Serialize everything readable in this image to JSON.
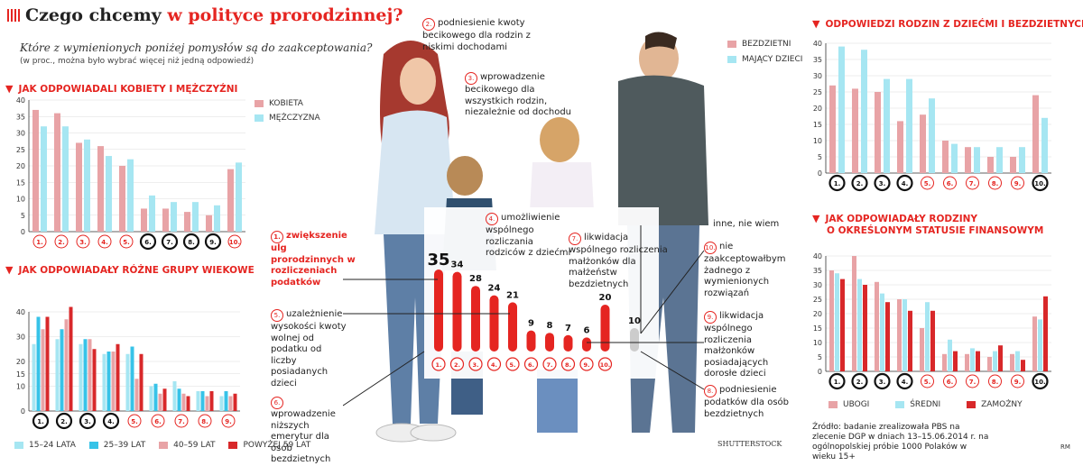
{
  "header": {
    "title_a": "Czego chcemy",
    "title_b": "w polityce prorodzinnej?",
    "subtitle": "Które z wymienionych poniżej pomysłów są do zaakceptowania?",
    "note": "(w proc., można było wybrać więcej niż jedną odpowiedź)"
  },
  "sections": {
    "gender": "JAK ODPOWIADALI KOBIETY I MĘŻCZYŹNI",
    "age": "JAK ODPOWIADAŁY RÓŻNE GRUPY WIEKOWE",
    "families": "ODPOWIEDZI RODZIN Z DZIEĆMI I BEZDZIETNYCH",
    "status_1": "JAK ODPOWIADAŁY RODZINY",
    "status_2": "O OKREŚLONYM STATUSIE FINANSOWYM"
  },
  "colors": {
    "red": "#e52521",
    "pink": "#e8a3a6",
    "cyan": "#a6e6f2",
    "blue": "#37c3e8",
    "dark_red": "#d8282a",
    "grey": "#cccccc"
  },
  "chart_data": [
    {
      "id": "gender",
      "type": "bar",
      "categories": [
        "1.",
        "2.",
        "3.",
        "4.",
        "5.",
        "6.",
        "7.",
        "8.",
        "9.",
        "10."
      ],
      "ylim": [
        0,
        40
      ],
      "yticks": [
        0,
        5,
        10,
        15,
        20,
        25,
        30,
        35,
        40
      ],
      "series": [
        {
          "name": "KOBIETA",
          "values": [
            37,
            36,
            27,
            26,
            20,
            7,
            7,
            6,
            5,
            19
          ]
        },
        {
          "name": "MĘŻCZYZNA",
          "values": [
            32,
            32,
            28,
            23,
            22,
            11,
            9,
            9,
            8,
            21
          ]
        }
      ]
    },
    {
      "id": "age",
      "type": "bar",
      "categories": [
        "1.",
        "2.",
        "3.",
        "4.",
        "5.",
        "6.",
        "7.",
        "8.",
        "9."
      ],
      "ylim": [
        0,
        40
      ],
      "yticks": [
        0,
        10,
        15,
        20,
        30,
        40
      ],
      "series": [
        {
          "name": "15–24 LATA",
          "values": [
            27,
            29,
            27,
            23,
            23,
            10,
            12,
            8,
            6
          ]
        },
        {
          "name": "25–39 LAT",
          "values": [
            38,
            33,
            29,
            24,
            26,
            11,
            9,
            8,
            8
          ]
        },
        {
          "name": "40–59 LAT",
          "values": [
            33,
            37,
            29,
            24,
            13,
            7,
            7,
            6,
            6
          ]
        },
        {
          "name": "POWYŻEJ 59 LAT",
          "values": [
            38,
            42,
            25,
            27,
            23,
            9,
            6,
            8,
            7
          ]
        }
      ]
    },
    {
      "id": "main",
      "type": "bar",
      "categories": [
        "1.",
        "2.",
        "3.",
        "4.",
        "5.",
        "6.",
        "7.",
        "8.",
        "9.",
        "10.",
        ""
      ],
      "values": [
        35,
        34,
        28,
        24,
        21,
        9,
        8,
        7,
        6,
        20,
        10
      ],
      "labels": [
        "35",
        "34",
        "28",
        "24",
        "21",
        "9",
        "8",
        "7",
        "6",
        "20",
        "10"
      ]
    },
    {
      "id": "families",
      "type": "bar",
      "categories": [
        "1.",
        "2.",
        "3.",
        "4.",
        "5.",
        "6.",
        "7.",
        "8.",
        "9.",
        "10."
      ],
      "ylim": [
        0,
        40
      ],
      "yticks": [
        0,
        5,
        10,
        15,
        20,
        25,
        30,
        35,
        40
      ],
      "series": [
        {
          "name": "BEZDZIETNI",
          "values": [
            27,
            26,
            25,
            16,
            18,
            10,
            8,
            5,
            5,
            24
          ]
        },
        {
          "name": "MAJĄCY DZIECI",
          "values": [
            39,
            38,
            29,
            29,
            23,
            9,
            8,
            8,
            8,
            17
          ]
        }
      ]
    },
    {
      "id": "status",
      "type": "bar",
      "categories": [
        "1.",
        "2.",
        "3.",
        "4.",
        "5.",
        "6.",
        "7.",
        "8.",
        "9.",
        "10."
      ],
      "ylim": [
        0,
        40
      ],
      "yticks": [
        0,
        5,
        10,
        15,
        20,
        25,
        30,
        35,
        40
      ],
      "series": [
        {
          "name": "UBOGI",
          "values": [
            35,
            40,
            31,
            25,
            15,
            6,
            6,
            5,
            6,
            19
          ]
        },
        {
          "name": "ŚREDNI",
          "values": [
            34,
            32,
            27,
            25,
            24,
            11,
            8,
            7,
            7,
            18
          ]
        },
        {
          "name": "ZAMOŻNY",
          "values": [
            32,
            30,
            24,
            21,
            21,
            7,
            7,
            9,
            4,
            26
          ]
        }
      ]
    }
  ],
  "callouts": {
    "c1": "zwiększenie ulg prorodzinnych w rozliczeniach podatków",
    "c2": "podniesienie kwoty becikowego dla rodzin z niskimi dochodami",
    "c3": "wprowadzenie becikowego dla wszystkich rodzin, niezależnie od dochodu",
    "c4": "umożliwienie wspólnego rozliczania rodziców z dziećmi",
    "c5": "uzależnienie wysokości kwoty wolnej od podatku od liczby posiadanych dzieci",
    "c6": "wprowadzenie niższych emerytur dla osób bezdzietnych",
    "c7": "likwidacja wspólnego rozliczenia małżonków dla małżeństw bezdzietnych",
    "c8": "podniesienie podatków dla osób bezdzietnych",
    "c9": "likwidacja wspólnego rozliczenia małżonków posiadających dorosłe dzieci",
    "c10": "nie zaakceptowałbym żadnego z wymienionych rozwiązań",
    "cx": "inne, nie wiem"
  },
  "callout_numbers": [
    "1.",
    "2.",
    "3.",
    "4.",
    "5.",
    "6.",
    "7.",
    "8.",
    "9.",
    "10."
  ],
  "source": "Źródło: badanie zrealizowała PBS na zlecenie DGP w dniach 13–15.06.2014 r. na ogólnopolskiej próbie 1000 Polaków w wieku 15+",
  "credit": "SHUTTERSTOCK",
  "author": "RM"
}
